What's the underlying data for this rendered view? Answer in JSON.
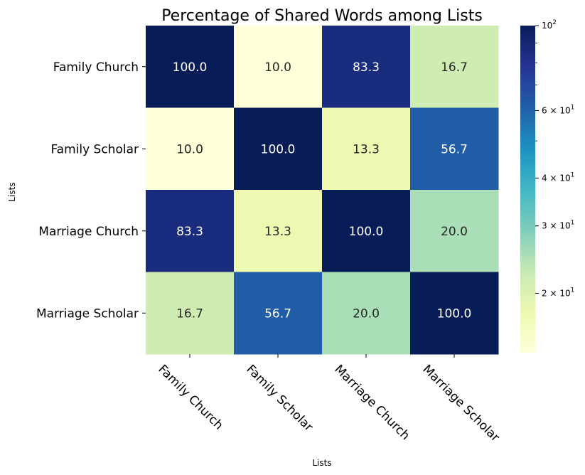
{
  "chart_data": {
    "type": "heatmap",
    "title": "Percentage of Shared Words among Lists",
    "xlabel": "Lists",
    "ylabel": "Lists",
    "rows": [
      "Family Church",
      "Family Scholar",
      "Marriage Church",
      "Marriage Scholar"
    ],
    "columns": [
      "Family Church",
      "Family Scholar",
      "Marriage Church",
      "Marriage Scholar"
    ],
    "values": [
      [
        100.0,
        10.0,
        83.3,
        16.7
      ],
      [
        10.0,
        100.0,
        13.3,
        56.7
      ],
      [
        83.3,
        13.3,
        100.0,
        20.0
      ],
      [
        16.7,
        56.7,
        20.0,
        100.0
      ]
    ],
    "cell_labels": [
      [
        "100.0",
        "10.0",
        "83.3",
        "16.7"
      ],
      [
        "10.0",
        "100.0",
        "13.3",
        "56.7"
      ],
      [
        "83.3",
        "13.3",
        "100.0",
        "20.0"
      ],
      [
        "16.7",
        "56.7",
        "20.0",
        "100.0"
      ]
    ],
    "colormap": "YlGnBu",
    "colormap_stops": [
      "#ffffd9",
      "#edf8b1",
      "#c7e9b4",
      "#7fcdbb",
      "#41b6c4",
      "#1d91c0",
      "#225ea8",
      "#253494",
      "#081d58"
    ],
    "color_scale": "log",
    "color_range": [
      10,
      100
    ],
    "colorbar_ticks": [
      {
        "value": 100,
        "base": "10",
        "exp": "2"
      },
      {
        "value": 60,
        "base": "6 × 10",
        "exp": "1"
      },
      {
        "value": 40,
        "base": "4 × 10",
        "exp": "1"
      },
      {
        "value": 30,
        "base": "3 × 10",
        "exp": "1"
      },
      {
        "value": 20,
        "base": "2 × 10",
        "exp": "1"
      }
    ],
    "x_tick_rotation": -45,
    "legend": "colorbar-right"
  }
}
